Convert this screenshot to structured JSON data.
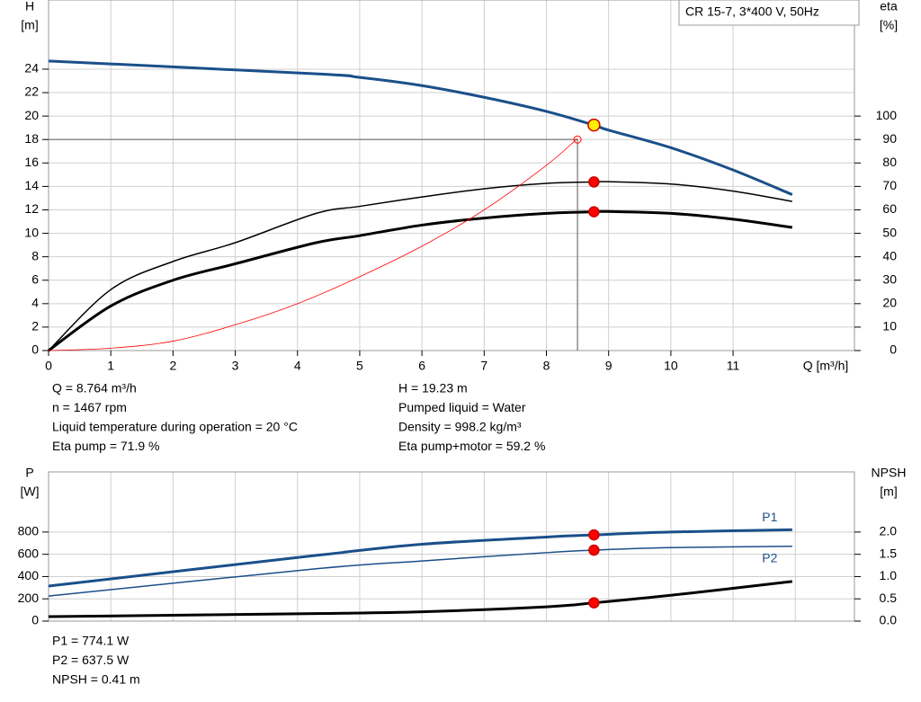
{
  "chart_data": [
    {
      "type": "line",
      "title": "CR 15-7, 3*400 V, 50Hz",
      "ylabel": [
        "H",
        "[m]"
      ],
      "y2label": [
        "eta",
        "[%]"
      ],
      "xlabel": "Q [m³/h]",
      "xlim": [
        0,
        12.95
      ],
      "xticks": [
        0,
        1,
        2,
        3,
        4,
        5,
        6,
        7,
        8,
        9,
        10,
        11
      ],
      "ylim": [
        0,
        29.9
      ],
      "yticks": [
        0,
        2,
        4,
        6,
        8,
        10,
        12,
        14,
        16,
        18,
        20,
        22,
        24
      ],
      "y2lim": [
        0,
        149.5
      ],
      "y2ticks": [
        0,
        10,
        20,
        30,
        40,
        50,
        60,
        70,
        80,
        90,
        100
      ],
      "grid": true,
      "series": [
        {
          "color": "#1a4f8a",
          "line_width": 3,
          "x": [
            0,
            4.3,
            5,
            6,
            7,
            8,
            8.764,
            9,
            10,
            11,
            11.95
          ],
          "values": [
            24.7,
            23.6,
            23.3,
            22.6,
            21.6,
            20.4,
            19.23,
            18.8,
            17.3,
            15.4,
            13.3
          ]
        },
        {
          "color": "#000000",
          "line_width": 1.5,
          "axis": "y2",
          "x": [
            0,
            1,
            2,
            3,
            4.3,
            5,
            6,
            7,
            8,
            8.764,
            9,
            10,
            11,
            11.95
          ],
          "values": [
            0,
            26,
            38,
            46,
            58.5,
            61.5,
            65.5,
            69,
            71.3,
            71.9,
            72,
            71,
            68,
            63.6
          ]
        },
        {
          "color": "#000000",
          "line_width": 3,
          "axis": "y2",
          "x": [
            0,
            1,
            2,
            3,
            4.3,
            5,
            6,
            7,
            8,
            8.764,
            9,
            10,
            11,
            11.95
          ],
          "values": [
            0,
            19,
            30,
            37,
            46,
            49,
            53.5,
            56.5,
            58.5,
            59.2,
            59.3,
            58.5,
            56,
            52.5
          ]
        },
        {
          "color": "#ff0000",
          "line_width": 0.8,
          "x": [
            0,
            1,
            2,
            3,
            4,
            5,
            6,
            7,
            8,
            8.5
          ],
          "values": [
            0,
            0.2,
            0.8,
            2.2,
            4,
            6.3,
            8.9,
            12,
            15.8,
            18.1
          ]
        }
      ],
      "reference": {
        "x": 8.5,
        "y": 18
      },
      "operating_points": [
        {
          "x": 8.764,
          "y": 19.23,
          "color": "#ffee00"
        },
        {
          "x": 8.764,
          "y": 71.9,
          "axis": "y2",
          "color": "#ff0000"
        },
        {
          "x": 8.764,
          "y": 59.2,
          "axis": "y2",
          "color": "#ff0000"
        }
      ],
      "readout": [
        [
          "Q = 8.764 m³/h",
          "n = 1467 rpm",
          "Liquid temperature during operation = 20 °C",
          "Eta pump = 71.9 %"
        ],
        [
          "H = 19.23 m",
          "Pumped liquid = Water",
          "Density = 998.2 kg/m³",
          "Eta pump+motor = 59.2 %"
        ]
      ]
    },
    {
      "type": "line",
      "ylabel": [
        "P",
        "[W]"
      ],
      "y2label": [
        "NPSH",
        "[m]"
      ],
      "xlim": [
        0,
        12.95
      ],
      "xgrid": [
        0,
        1,
        2,
        3,
        4,
        5,
        6,
        7,
        8,
        9,
        10,
        11,
        12
      ],
      "ylim": [
        0,
        1340
      ],
      "yticks": [
        0,
        200,
        400,
        600,
        800
      ],
      "y2lim": [
        0,
        3.35
      ],
      "y2ticks": [
        {
          "value": 0,
          "label": "0.0"
        },
        0.5,
        {
          "value": 1,
          "label": "1.0"
        },
        1.5,
        {
          "value": 2,
          "label": "2.0"
        }
      ],
      "grid": true,
      "series": [
        {
          "name": "P1",
          "color": "#1a4f8a",
          "line_width": 3,
          "x": [
            0,
            4.3,
            6,
            8,
            8.764,
            10,
            11.95
          ],
          "values": [
            315,
            590,
            690,
            755,
            774.1,
            800,
            820
          ]
        },
        {
          "name": "P2",
          "color": "#1a4f8a",
          "line_width": 1.5,
          "x": [
            0,
            4.3,
            6,
            8,
            8.764,
            10,
            11.95
          ],
          "values": [
            225,
            470,
            540,
            615,
            637.5,
            660,
            672
          ]
        },
        {
          "color": "#000000",
          "line_width": 3,
          "axis": "y2",
          "x": [
            0,
            4.3,
            6,
            8,
            8.764,
            10,
            11.95
          ],
          "values": [
            0.1,
            0.17,
            0.21,
            0.32,
            0.41,
            0.58,
            0.89
          ]
        }
      ],
      "operating_points": [
        {
          "x": 8.764,
          "y": 774.1,
          "color": "#ff0000"
        },
        {
          "x": 8.764,
          "y": 637.5,
          "color": "#ff0000"
        },
        {
          "x": 8.764,
          "y": 0.41,
          "axis": "y2",
          "color": "#ff0000"
        }
      ],
      "readout": [
        [
          "P1 = 774.1 W",
          "P2 = 637.5 W",
          "NPSH = 0.41 m"
        ]
      ]
    }
  ]
}
